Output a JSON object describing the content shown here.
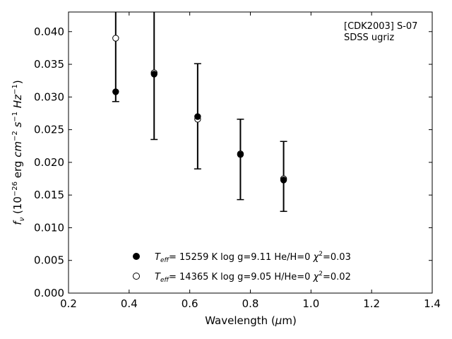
{
  "chart_data": {
    "type": "scatter",
    "xlabel": "Wavelength (μm)",
    "ylabel": "f_ν (10^-26 erg cm^-2 s^-1 Hz^-1)",
    "xlim": [
      0.2,
      1.4
    ],
    "ylim": [
      0.0,
      0.043
    ],
    "x_ticks": [
      0.2,
      0.4,
      0.6,
      0.8,
      1.0,
      1.2,
      1.4
    ],
    "x_tick_labels": [
      "0.2",
      "0.4",
      "0.6",
      "0.8",
      "1.0",
      "1.2",
      "1.4"
    ],
    "y_ticks": [
      0.0,
      0.005,
      0.01,
      0.015,
      0.02,
      0.025,
      0.03,
      0.035,
      0.04
    ],
    "y_tick_labels": [
      "0.000",
      "0.005",
      "0.010",
      "0.015",
      "0.020",
      "0.025",
      "0.030",
      "0.035",
      "0.040"
    ],
    "grid": false,
    "legend_position": "bottom-center",
    "annotation_lines": [
      "[CDK2003] S-07",
      "SDSS ugriz"
    ],
    "observed": {
      "x": [
        0.3557,
        0.4825,
        0.6261,
        0.7672,
        0.9097
      ],
      "y": [
        0.0308,
        0.0335,
        0.027,
        0.0212,
        0.0173
      ],
      "err_low": [
        0.0293,
        0.0235,
        0.019,
        0.0143,
        0.0125
      ],
      "err_high": [
        0.047,
        0.047,
        0.0351,
        0.0266,
        0.0232
      ]
    },
    "series": [
      {
        "marker": "filled",
        "label": "T_eff= 15259 K  log g=9.11  He/H=0  χ²=0.03",
        "x": [
          0.3557,
          0.4825,
          0.6261,
          0.7672,
          0.9097
        ],
        "y": [
          0.0308,
          0.0335,
          0.027,
          0.0212,
          0.0173
        ]
      },
      {
        "marker": "open",
        "label": "T_eff= 14365 K  log g=9.05  H/He=0  χ²=0.02",
        "x": [
          0.3557,
          0.4825,
          0.6261,
          0.7672,
          0.9097
        ],
        "y": [
          0.039,
          0.0337,
          0.0266,
          0.0213,
          0.0175
        ]
      }
    ],
    "legend": [
      {
        "marker": "filled",
        "teff": "= 15259 K  log g=9.11  He/H=0  ",
        "chi": "=0.03"
      },
      {
        "marker": "open",
        "teff": "= 14365 K  log g=9.05  H/He=0  ",
        "chi": "=0.02"
      }
    ]
  }
}
